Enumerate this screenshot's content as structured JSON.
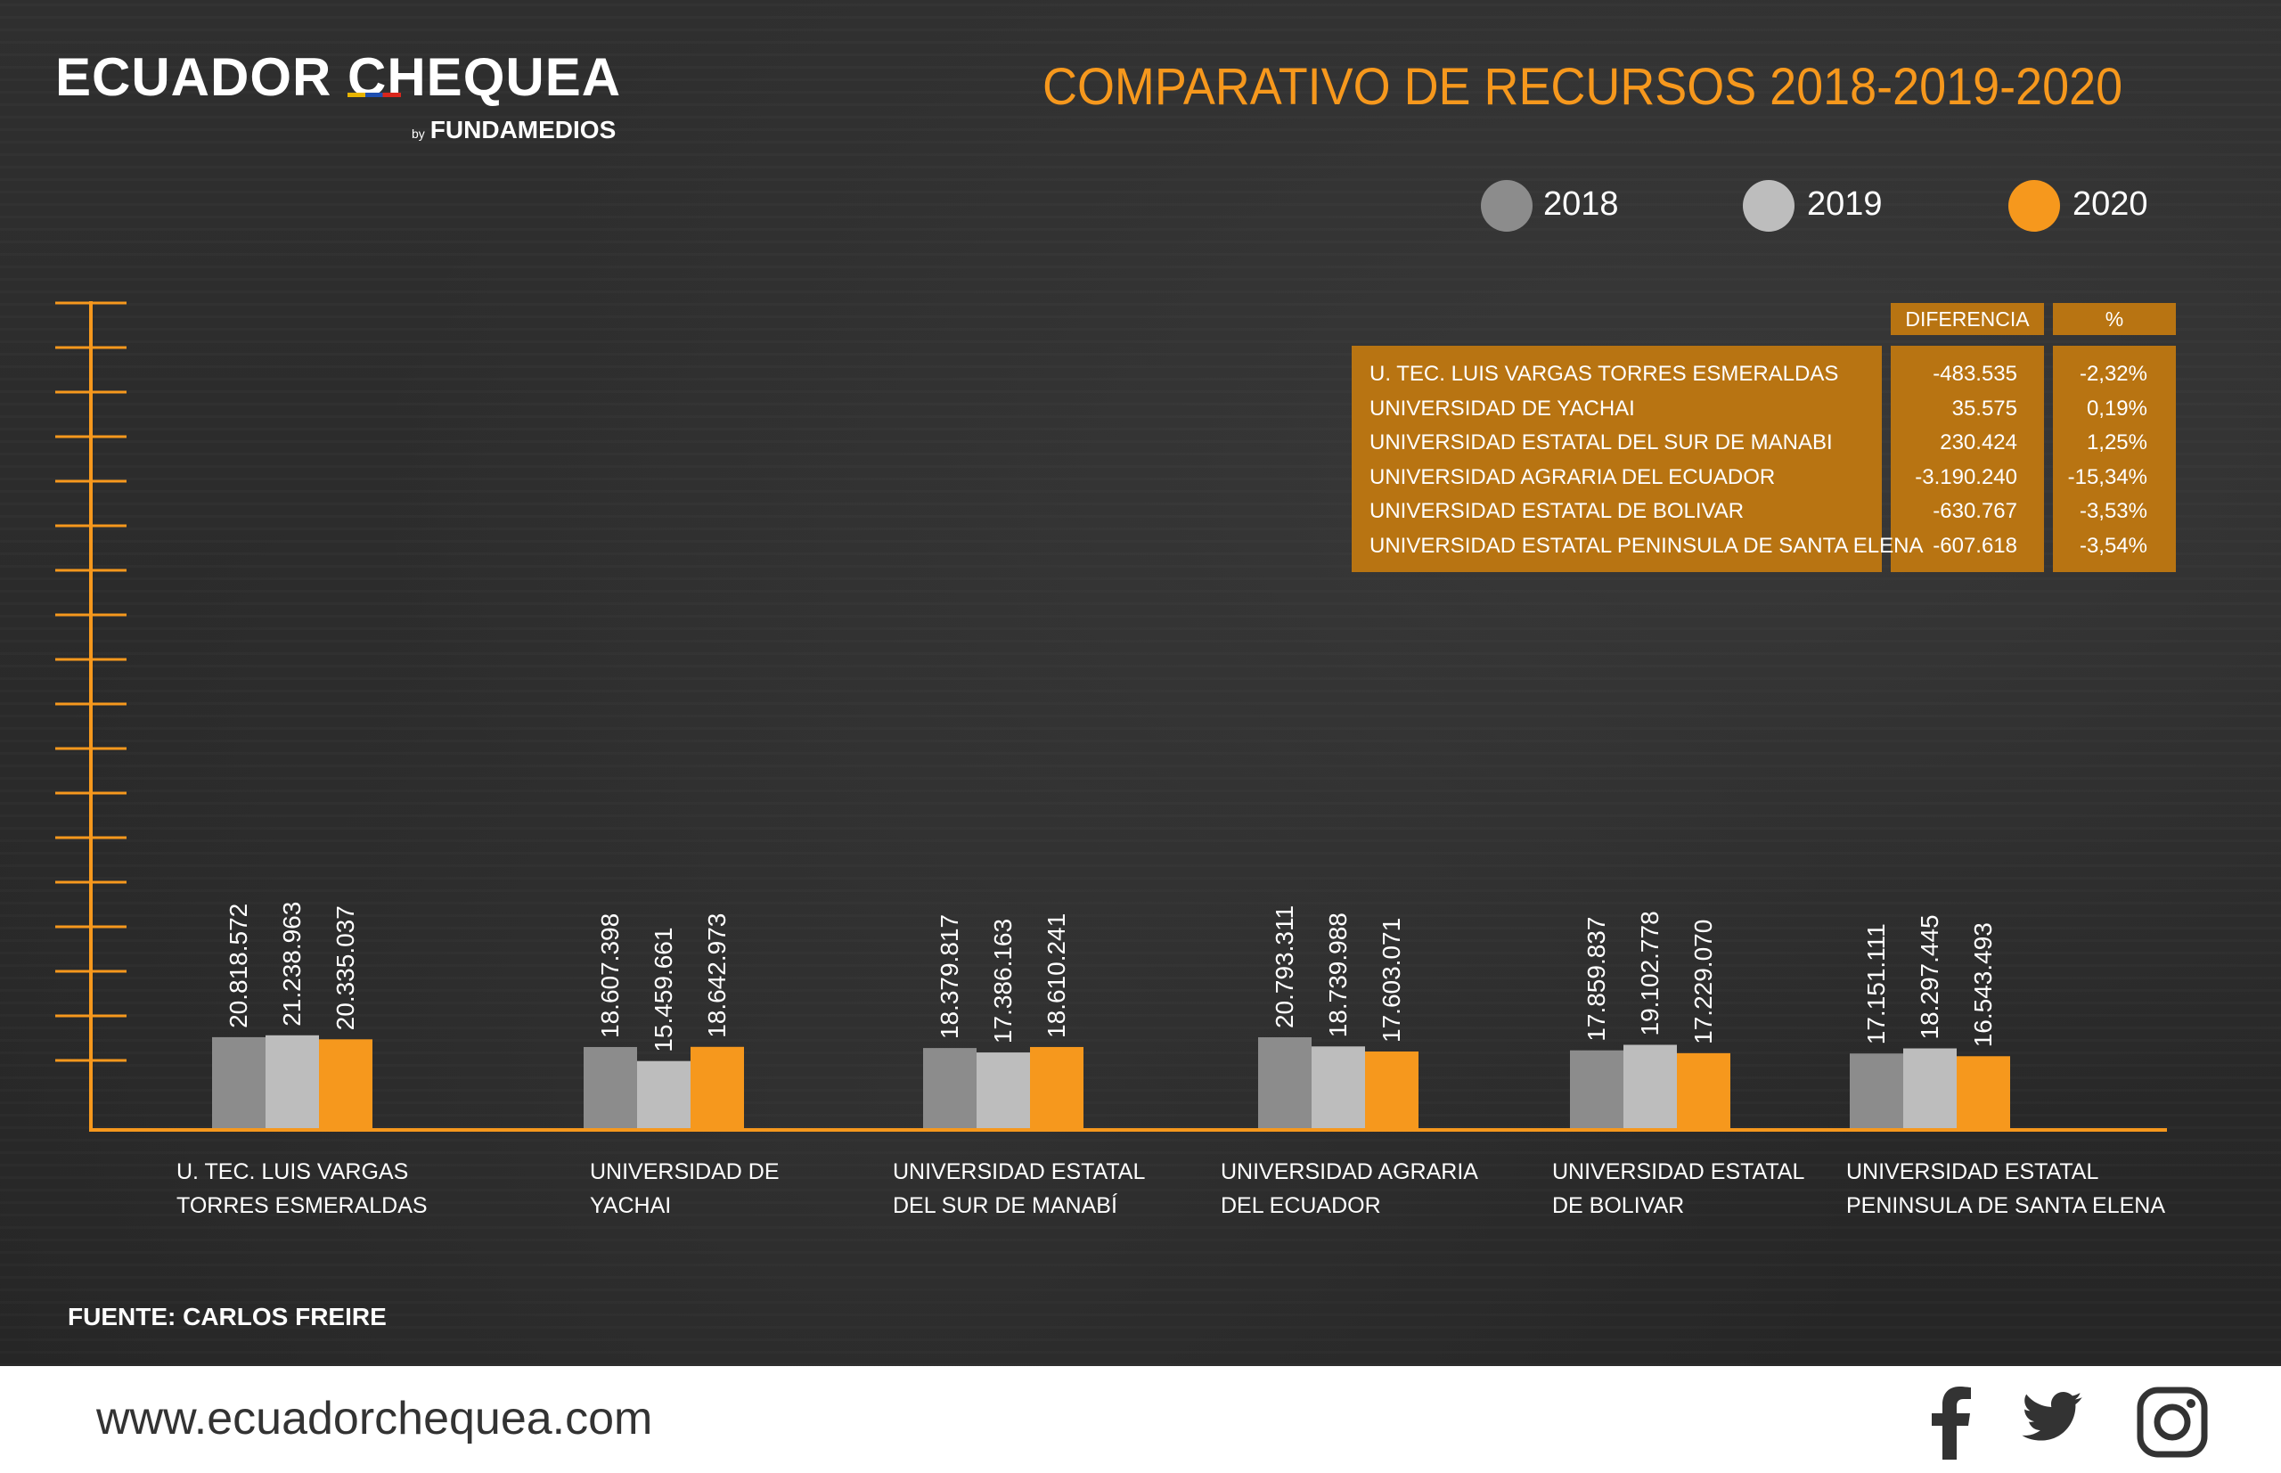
{
  "brand": {
    "name": "ECUADOR CHEQUEA",
    "by_prefix": "by",
    "by_name": "FUNDAMEDIOS"
  },
  "colors": {
    "y2018": "#8c8c8c",
    "y2019": "#bdbdbd",
    "y2020": "#f6981d",
    "axis": "#f6981d",
    "table": "#b87412"
  },
  "table": {
    "headers": {
      "diff": "DIFERENCIA",
      "pct": "%"
    },
    "rows": [
      {
        "name": "U. TEC. LUIS VARGAS TORRES ESMERALDAS",
        "diff": "-483.535",
        "pct": "-2,32%"
      },
      {
        "name": "UNIVERSIDAD DE YACHAI",
        "diff": "35.575",
        "pct": "0,19%"
      },
      {
        "name": "UNIVERSIDAD ESTATAL DEL SUR DE MANABI",
        "diff": "230.424",
        "pct": "1,25%"
      },
      {
        "name": "UNIVERSIDAD AGRARIA DEL ECUADOR",
        "diff": "-3.190.240",
        "pct": "-15,34%"
      },
      {
        "name": "UNIVERSIDAD ESTATAL DE BOLIVAR",
        "diff": "-630.767",
        "pct": "-3,53%"
      },
      {
        "name": "UNIVERSIDAD ESTATAL PENINSULA DE SANTA ELENA",
        "diff": "-607.618",
        "pct": "-3,54%"
      }
    ]
  },
  "chart_data": {
    "type": "bar",
    "title": "COMPARATIVO DE RECURSOS 2018-2019-2020",
    "categories": [
      [
        "U. TEC. LUIS VARGAS",
        "TORRES ESMERALDAS"
      ],
      [
        "UNIVERSIDAD DE",
        "YACHAI"
      ],
      [
        "UNIVERSIDAD ESTATAL",
        "DEL SUR DE MANABÍ"
      ],
      [
        "UNIVERSIDAD AGRARIA",
        "DEL ECUADOR"
      ],
      [
        "UNIVERSIDAD ESTATAL",
        "DE BOLIVAR"
      ],
      [
        "UNIVERSIDAD ESTATAL",
        "PENINSULA DE SANTA ELENA"
      ]
    ],
    "series": [
      {
        "name": "2018",
        "values": [
          20818572,
          18607398,
          18379817,
          20793311,
          17859837,
          17151111
        ],
        "labels": [
          "20.818.572",
          "18.607.398",
          "18.379.817",
          "20.793.311",
          "17.859.837",
          "17.151.111"
        ]
      },
      {
        "name": "2019",
        "values": [
          21238963,
          15459661,
          17386163,
          18739988,
          19102778,
          18297445
        ],
        "labels": [
          "21.238.963",
          "15.459.661",
          "17.386.163",
          "18.739.988",
          "19.102.778",
          "18.297.445"
        ]
      },
      {
        "name": "2020",
        "values": [
          20335037,
          18642973,
          18610241,
          17603071,
          17229070,
          16543493
        ],
        "labels": [
          "20.335.037",
          "18.642.973",
          "18.610.241",
          "17.603.071",
          "17.229.070",
          "16.543.493"
        ]
      }
    ],
    "legend": "top-right",
    "grid": false,
    "source": "FUENTE: CARLOS FREIRE"
  },
  "footer": {
    "url": "www.ecuadorchequea.com",
    "social": [
      "facebook-icon",
      "twitter-icon",
      "instagram-icon"
    ]
  }
}
